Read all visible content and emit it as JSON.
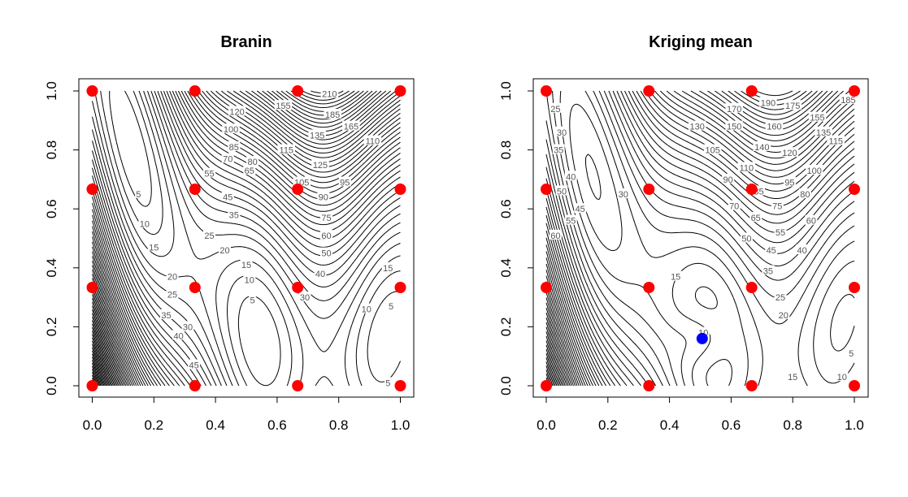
{
  "chart_data": [
    {
      "type": "contour",
      "title": "Branin",
      "xlabel": "",
      "ylabel": "",
      "xlim": [
        0,
        1
      ],
      "ylim": [
        0,
        1
      ],
      "xticks": [
        "0.0",
        "0.2",
        "0.4",
        "0.6",
        "0.8",
        "1.0"
      ],
      "yticks": [
        "0.0",
        "0.2",
        "0.4",
        "0.6",
        "0.8",
        "1.0"
      ],
      "function": "branin",
      "levels_step": 5,
      "levels_max": 300,
      "contour_labels": [
        {
          "text": "210",
          "x": 0.77,
          "y": 0.99
        },
        {
          "text": "185",
          "x": 0.78,
          "y": 0.92
        },
        {
          "text": "165",
          "x": 0.84,
          "y": 0.88
        },
        {
          "text": "155",
          "x": 0.62,
          "y": 0.95
        },
        {
          "text": "135",
          "x": 0.73,
          "y": 0.85
        },
        {
          "text": "120",
          "x": 0.47,
          "y": 0.93
        },
        {
          "text": "110",
          "x": 0.91,
          "y": 0.83
        },
        {
          "text": "100",
          "x": 0.45,
          "y": 0.87
        },
        {
          "text": "85",
          "x": 0.46,
          "y": 0.81
        },
        {
          "text": "80",
          "x": 0.52,
          "y": 0.76
        },
        {
          "text": "70",
          "x": 0.44,
          "y": 0.77
        },
        {
          "text": "65",
          "x": 0.51,
          "y": 0.73
        },
        {
          "text": "55",
          "x": 0.38,
          "y": 0.72
        },
        {
          "text": "45",
          "x": 0.44,
          "y": 0.64
        },
        {
          "text": "35",
          "x": 0.46,
          "y": 0.58
        },
        {
          "text": "25",
          "x": 0.38,
          "y": 0.51
        },
        {
          "text": "20",
          "x": 0.43,
          "y": 0.46
        },
        {
          "text": "15",
          "x": 0.5,
          "y": 0.41
        },
        {
          "text": "10",
          "x": 0.51,
          "y": 0.36
        },
        {
          "text": "5",
          "x": 0.52,
          "y": 0.29
        },
        {
          "text": "5",
          "x": 0.15,
          "y": 0.65
        },
        {
          "text": "10",
          "x": 0.17,
          "y": 0.55
        },
        {
          "text": "15",
          "x": 0.2,
          "y": 0.47
        },
        {
          "text": "20",
          "x": 0.26,
          "y": 0.37
        },
        {
          "text": "25",
          "x": 0.26,
          "y": 0.31
        },
        {
          "text": "30",
          "x": 0.31,
          "y": 0.2
        },
        {
          "text": "35",
          "x": 0.24,
          "y": 0.24
        },
        {
          "text": "40",
          "x": 0.28,
          "y": 0.17
        },
        {
          "text": "45",
          "x": 0.33,
          "y": 0.07
        },
        {
          "text": "30",
          "x": 0.69,
          "y": 0.3
        },
        {
          "text": "40",
          "x": 0.74,
          "y": 0.38
        },
        {
          "text": "50",
          "x": 0.76,
          "y": 0.45
        },
        {
          "text": "60",
          "x": 0.76,
          "y": 0.51
        },
        {
          "text": "75",
          "x": 0.76,
          "y": 0.57
        },
        {
          "text": "90",
          "x": 0.75,
          "y": 0.64
        },
        {
          "text": "95",
          "x": 0.82,
          "y": 0.69
        },
        {
          "text": "105",
          "x": 0.68,
          "y": 0.69
        },
        {
          "text": "125",
          "x": 0.74,
          "y": 0.75
        },
        {
          "text": "115",
          "x": 0.63,
          "y": 0.8
        },
        {
          "text": "15",
          "x": 0.96,
          "y": 0.4
        },
        {
          "text": "10",
          "x": 0.89,
          "y": 0.26
        },
        {
          "text": "5",
          "x": 0.97,
          "y": 0.27
        },
        {
          "text": "5",
          "x": 0.96,
          "y": 0.01
        }
      ],
      "design_points": [
        {
          "x": 0,
          "y": 0
        },
        {
          "x": 0.3333,
          "y": 0
        },
        {
          "x": 0.6667,
          "y": 0
        },
        {
          "x": 1,
          "y": 0
        },
        {
          "x": 0,
          "y": 0.3333
        },
        {
          "x": 0.3333,
          "y": 0.3333
        },
        {
          "x": 0.6667,
          "y": 0.3333
        },
        {
          "x": 1,
          "y": 0.3333
        },
        {
          "x": 0,
          "y": 0.6667
        },
        {
          "x": 0.3333,
          "y": 0.6667
        },
        {
          "x": 0.6667,
          "y": 0.6667
        },
        {
          "x": 1,
          "y": 0.6667
        },
        {
          "x": 0,
          "y": 1
        },
        {
          "x": 0.3333,
          "y": 1
        },
        {
          "x": 0.6667,
          "y": 1
        },
        {
          "x": 1,
          "y": 1
        }
      ],
      "highlight_point": null
    },
    {
      "type": "contour",
      "title": "Kriging mean",
      "xlabel": "",
      "ylabel": "",
      "xlim": [
        0,
        1
      ],
      "ylim": [
        0,
        1
      ],
      "xticks": [
        "0.0",
        "0.2",
        "0.4",
        "0.6",
        "0.8",
        "1.0"
      ],
      "yticks": [
        "0.0",
        "0.2",
        "0.4",
        "0.6",
        "0.8",
        "1.0"
      ],
      "function": "kriging_mean",
      "levels_step": 5,
      "levels_max": 300,
      "contour_labels": [
        {
          "text": "25",
          "x": 0.03,
          "y": 0.94
        },
        {
          "text": "30",
          "x": 0.05,
          "y": 0.86
        },
        {
          "text": "35",
          "x": 0.04,
          "y": 0.8
        },
        {
          "text": "40",
          "x": 0.08,
          "y": 0.71
        },
        {
          "text": "50",
          "x": 0.05,
          "y": 0.66
        },
        {
          "text": "45",
          "x": 0.11,
          "y": 0.6
        },
        {
          "text": "55",
          "x": 0.08,
          "y": 0.56
        },
        {
          "text": "60",
          "x": 0.03,
          "y": 0.51
        },
        {
          "text": "30",
          "x": 0.25,
          "y": 0.65
        },
        {
          "text": "15",
          "x": 0.42,
          "y": 0.37
        },
        {
          "text": "10",
          "x": 0.51,
          "y": 0.18
        },
        {
          "text": "15",
          "x": 0.8,
          "y": 0.03
        },
        {
          "text": "10",
          "x": 0.96,
          "y": 0.03
        },
        {
          "text": "5",
          "x": 0.99,
          "y": 0.11
        },
        {
          "text": "20",
          "x": 0.77,
          "y": 0.24
        },
        {
          "text": "25",
          "x": 0.76,
          "y": 0.3
        },
        {
          "text": "35",
          "x": 0.72,
          "y": 0.39
        },
        {
          "text": "40",
          "x": 0.83,
          "y": 0.46
        },
        {
          "text": "45",
          "x": 0.73,
          "y": 0.46
        },
        {
          "text": "50",
          "x": 0.65,
          "y": 0.5
        },
        {
          "text": "55",
          "x": 0.76,
          "y": 0.52
        },
        {
          "text": "60",
          "x": 0.86,
          "y": 0.56
        },
        {
          "text": "65",
          "x": 0.68,
          "y": 0.57
        },
        {
          "text": "70",
          "x": 0.61,
          "y": 0.61
        },
        {
          "text": "75",
          "x": 0.75,
          "y": 0.61
        },
        {
          "text": "80",
          "x": 0.84,
          "y": 0.65
        },
        {
          "text": "85",
          "x": 0.69,
          "y": 0.66
        },
        {
          "text": "90",
          "x": 0.59,
          "y": 0.7
        },
        {
          "text": "95",
          "x": 0.79,
          "y": 0.69
        },
        {
          "text": "100",
          "x": 0.87,
          "y": 0.73
        },
        {
          "text": "105",
          "x": 0.54,
          "y": 0.8
        },
        {
          "text": "110",
          "x": 0.65,
          "y": 0.74
        },
        {
          "text": "115",
          "x": 0.94,
          "y": 0.83
        },
        {
          "text": "120",
          "x": 0.79,
          "y": 0.79
        },
        {
          "text": "130",
          "x": 0.49,
          "y": 0.88
        },
        {
          "text": "135",
          "x": 0.9,
          "y": 0.86
        },
        {
          "text": "140",
          "x": 0.7,
          "y": 0.81
        },
        {
          "text": "150",
          "x": 0.61,
          "y": 0.88
        },
        {
          "text": "155",
          "x": 0.88,
          "y": 0.91
        },
        {
          "text": "160",
          "x": 0.74,
          "y": 0.88
        },
        {
          "text": "170",
          "x": 0.61,
          "y": 0.94
        },
        {
          "text": "175",
          "x": 0.8,
          "y": 0.95
        },
        {
          "text": "185",
          "x": 0.98,
          "y": 0.97
        },
        {
          "text": "190",
          "x": 0.72,
          "y": 0.96
        }
      ],
      "design_points": [
        {
          "x": 0,
          "y": 0
        },
        {
          "x": 0.3333,
          "y": 0
        },
        {
          "x": 0.6667,
          "y": 0
        },
        {
          "x": 1,
          "y": 0
        },
        {
          "x": 0,
          "y": 0.3333
        },
        {
          "x": 0.3333,
          "y": 0.3333
        },
        {
          "x": 0.6667,
          "y": 0.3333
        },
        {
          "x": 1,
          "y": 0.3333
        },
        {
          "x": 0,
          "y": 0.6667
        },
        {
          "x": 0.3333,
          "y": 0.6667
        },
        {
          "x": 0.6667,
          "y": 0.6667
        },
        {
          "x": 1,
          "y": 0.6667
        },
        {
          "x": 0,
          "y": 1
        },
        {
          "x": 0.3333,
          "y": 1
        },
        {
          "x": 0.6667,
          "y": 1
        },
        {
          "x": 1,
          "y": 1
        }
      ],
      "highlight_point": {
        "x": 0.506,
        "y": 0.16
      }
    }
  ],
  "colors": {
    "contour_line": "#000000",
    "contour_label": "#555555",
    "design_point": "#ff0000",
    "highlight_point": "#0000ff",
    "axis": "#000000",
    "background": "#ffffff"
  }
}
